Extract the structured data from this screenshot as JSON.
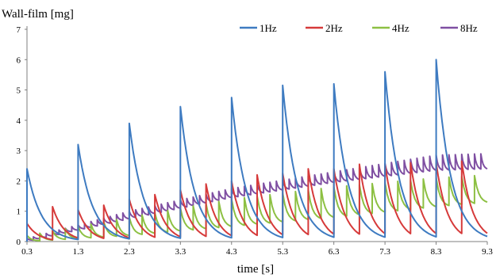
{
  "chart_data": {
    "type": "line",
    "ylabel": "Wall-film  [mg]",
    "xlabel": "time  [s]",
    "xlim": [
      0.3,
      9.3
    ],
    "ylim": [
      0,
      7
    ],
    "xticks": [
      "0.3",
      "1.3",
      "2.3",
      "3.3",
      "4.3",
      "5.3",
      "6.3",
      "7.3",
      "8.3",
      "9.3"
    ],
    "yticks": [
      "0",
      "1",
      "2",
      "3",
      "4",
      "5",
      "6",
      "7"
    ],
    "grid": false,
    "legend_position": "top-right",
    "series": [
      {
        "name": "1Hz",
        "color": "#3e7bc1",
        "frequency_hz": 1,
        "pulse_peaks": [
          2.4,
          3.2,
          3.9,
          4.45,
          4.75,
          5.15,
          5.2,
          5.6,
          6.0
        ],
        "decay_tau_s": 0.28
      },
      {
        "name": "2Hz",
        "color": "#d63a3a",
        "frequency_hz": 2,
        "pulse_peaks": [
          0.6,
          1.15,
          1.05,
          1.2,
          1.4,
          1.55,
          1.7,
          1.9,
          2.0,
          2.2,
          2.25,
          2.4,
          2.4,
          2.55,
          2.55,
          2.6,
          2.6,
          2.65
        ],
        "decay_tau_s": 0.22
      },
      {
        "name": "4Hz",
        "color": "#8dc043",
        "frequency_hz": 4,
        "peak_envelope": {
          "x": [
            0.3,
            2.3,
            4.3,
            6.3,
            8.3,
            9.3
          ],
          "y": [
            0.2,
            0.8,
            1.4,
            1.8,
            2.1,
            2.2
          ]
        },
        "trough_envelope": {
          "x": [
            0.3,
            2.3,
            4.3,
            6.3,
            8.3,
            9.3
          ],
          "y": [
            0.0,
            0.2,
            0.5,
            0.8,
            1.15,
            1.3
          ]
        }
      },
      {
        "name": "8Hz",
        "color": "#7f4fa2",
        "frequency_hz": 8,
        "peak_envelope": {
          "x": [
            0.3,
            2.3,
            4.3,
            6.3,
            8.3,
            9.3
          ],
          "y": [
            0.1,
            1.0,
            1.75,
            2.3,
            2.85,
            2.9
          ]
        },
        "trough_envelope": {
          "x": [
            0.3,
            2.3,
            4.3,
            6.3,
            8.3,
            9.3
          ],
          "y": [
            0.0,
            0.75,
            1.45,
            1.95,
            2.35,
            2.4
          ]
        }
      }
    ]
  }
}
